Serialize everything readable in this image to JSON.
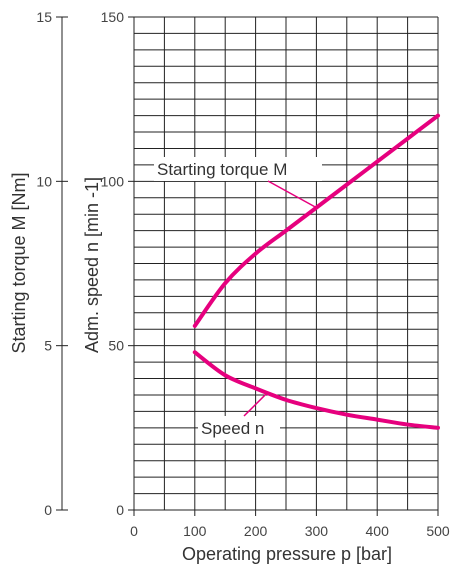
{
  "chart_data": {
    "type": "line",
    "title": "",
    "xlabel": "Operating pressure p [bar]",
    "ylabel_left": "Starting torque M [Nm]",
    "ylabel_right": "Adm. speed n [min -1]",
    "xlim": [
      0,
      500
    ],
    "ylim": [
      0,
      150
    ],
    "ylim_torque": [
      0,
      15
    ],
    "x_ticks": [
      "0",
      "100",
      "200",
      "300",
      "400",
      "500"
    ],
    "y_ticks": [
      "0",
      "50",
      "100",
      "150"
    ],
    "y_ticks_torque": [
      "0",
      "5",
      "10",
      "15"
    ],
    "grid": true,
    "color": "#e6007e",
    "series": [
      {
        "name": "Starting torque M",
        "axis": "torque",
        "x": [
          100,
          150,
          200,
          250,
          300,
          350,
          400,
          450,
          500
        ],
        "y": [
          5.6,
          6.9,
          7.8,
          8.5,
          9.2,
          9.9,
          10.6,
          11.3,
          12.0
        ]
      },
      {
        "name": "Speed n",
        "axis": "speed",
        "x": [
          100,
          150,
          200,
          250,
          300,
          350,
          400,
          450,
          500
        ],
        "y": [
          48,
          41,
          37,
          33.5,
          31,
          29,
          27.5,
          26,
          25
        ]
      }
    ]
  }
}
